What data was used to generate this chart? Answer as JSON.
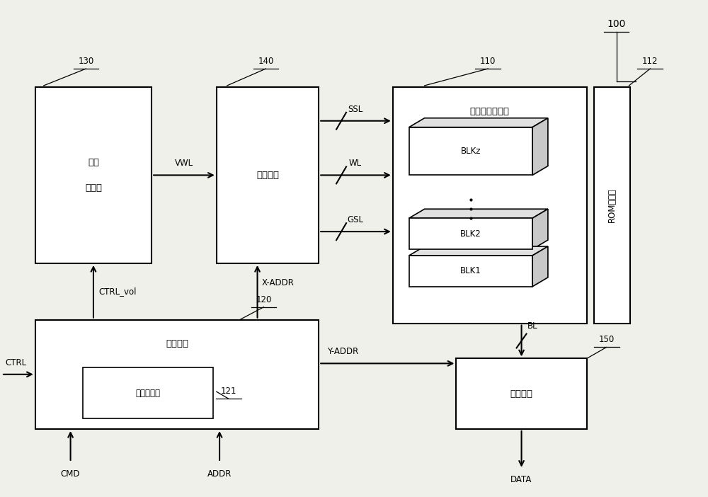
{
  "bg_color": "#f0f0eb",
  "box_color": "#ffffff",
  "box_edge": "#000000",
  "text_color": "#000000",
  "title_100": "100",
  "label_130": "130",
  "label_140": "140",
  "label_110": "110",
  "label_112": "112",
  "label_120": "120",
  "label_121": "121",
  "label_150": "150",
  "box_130_label1": "电压",
  "box_130_label2": "发生器",
  "box_140_label": "行解码器",
  "box_110_label": "存储器单元阵列",
  "box_112_label": "ROM寄存器",
  "box_120_label1": "控制逻辑",
  "box_121_label": "电压控制器",
  "box_150_label": "页缓冲器",
  "blkz_label": "BLKz",
  "blk2_label": "BLK2",
  "blk1_label": "BLK1",
  "arrow_vwl": "VWL",
  "arrow_ssl": "SSL",
  "arrow_wl": "WL",
  "arrow_gsl": "GSL",
  "arrow_ctrl_vol": "CTRL_vol",
  "arrow_x_addr": "X-ADDR",
  "arrow_y_addr": "Y-ADDR",
  "arrow_bl": "BL",
  "arrow_ctrl": "CTRL",
  "arrow_cmd": "CMD",
  "arrow_addr": "ADDR",
  "arrow_data": "DATA",
  "top_face_color": "#e0e0e0",
  "right_face_color": "#c8c8c8"
}
